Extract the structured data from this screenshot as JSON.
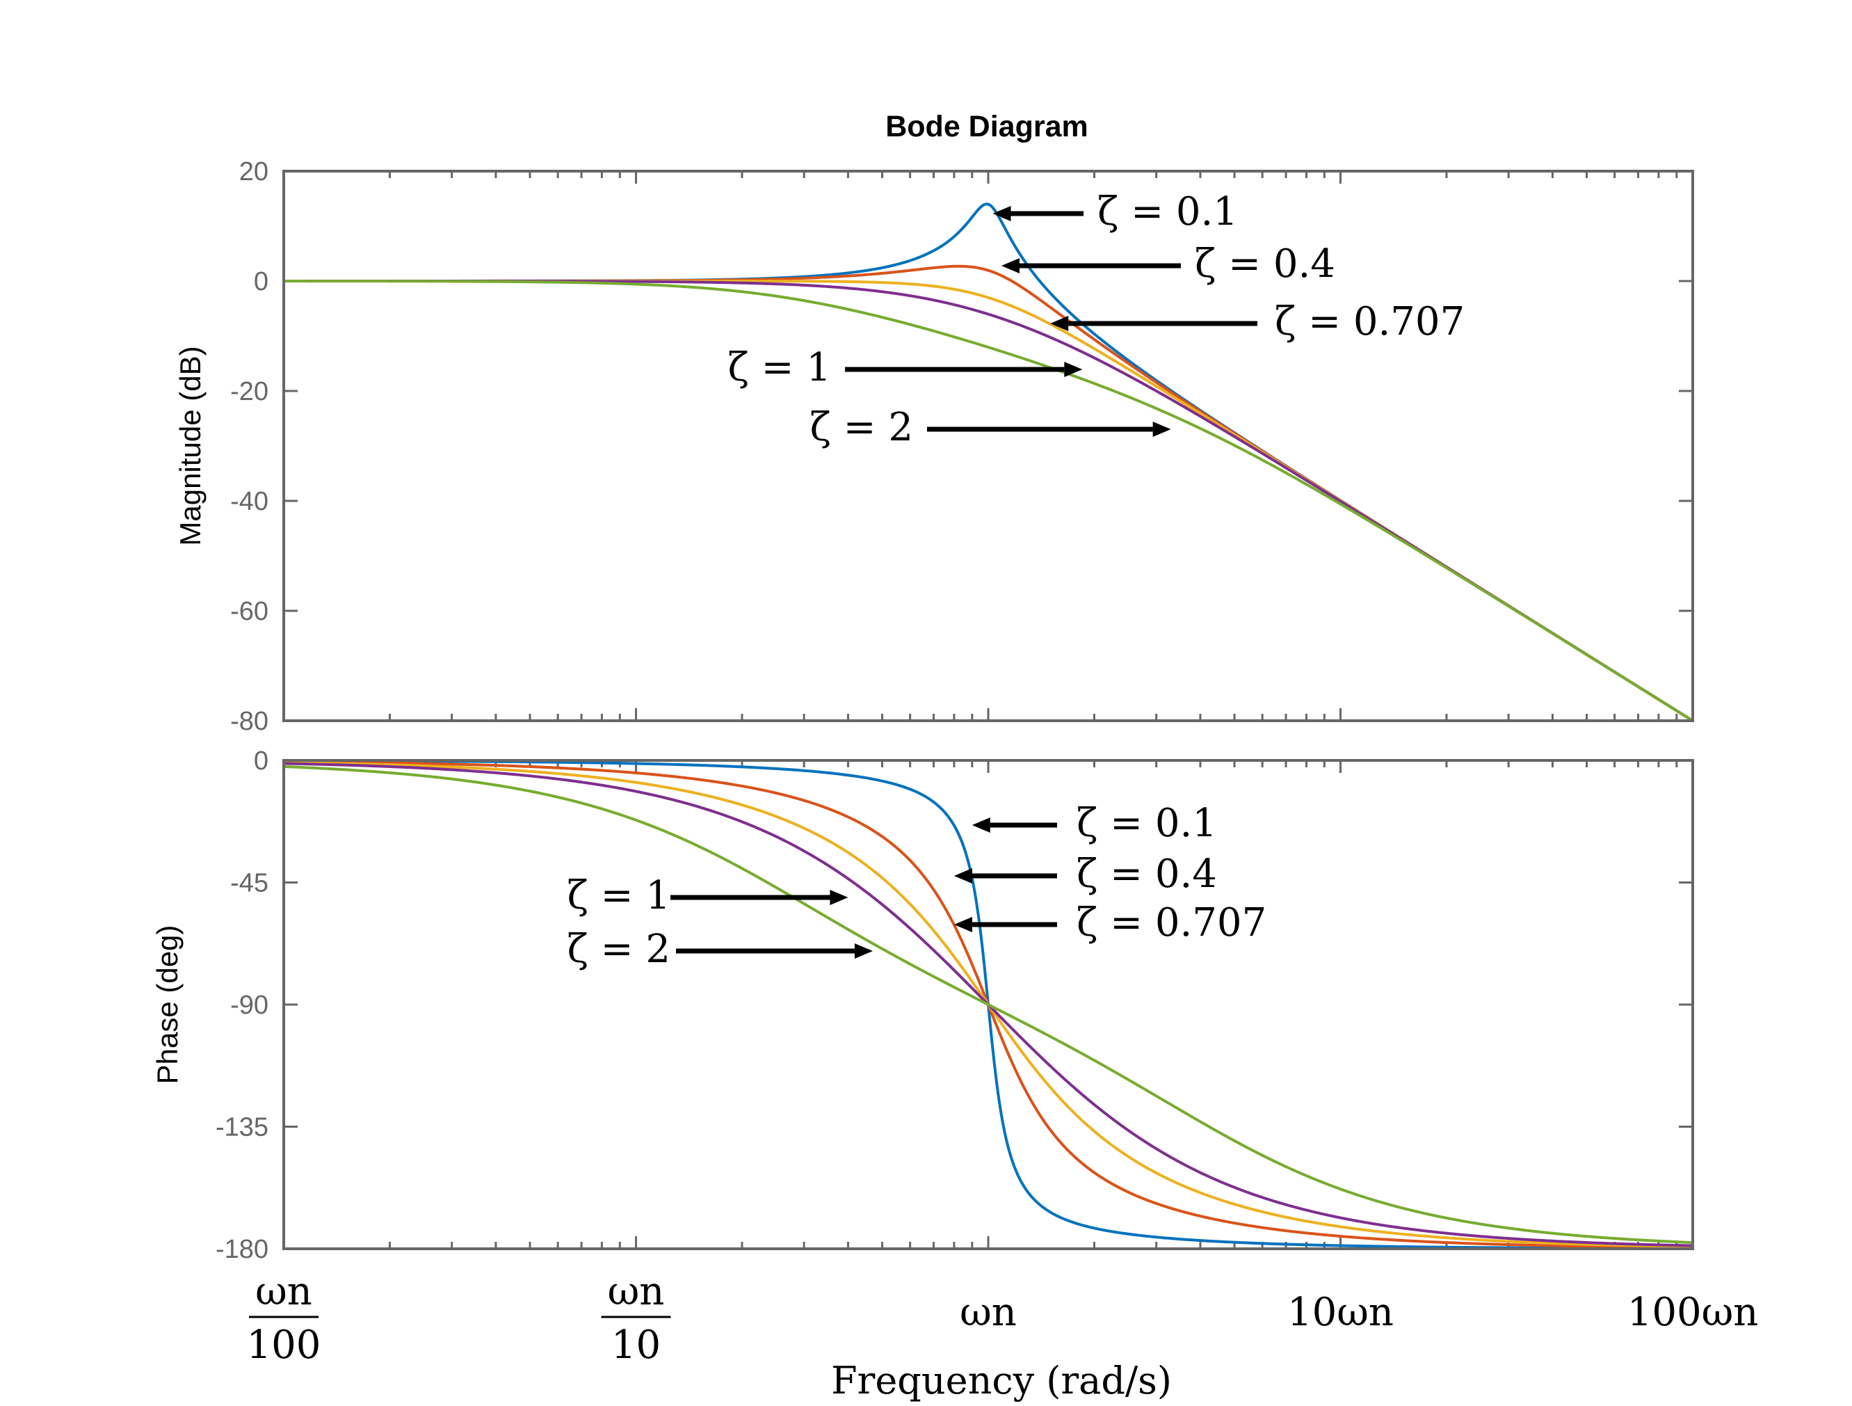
{
  "chart_data": {
    "type": "line",
    "title": "Bode Diagram",
    "xlabel": "Frequency (rad/s)",
    "x_scale": "log",
    "x_range_relative_to_wn": [
      0.01,
      100
    ],
    "x_ticks": [
      {
        "value": 0.01,
        "num": "ωn",
        "den": "100"
      },
      {
        "value": 0.1,
        "num": "ωn",
        "den": "10"
      },
      {
        "value": 1,
        "label": "ωn"
      },
      {
        "value": 10,
        "label": "10ωn"
      },
      {
        "value": 100,
        "label": "100ωn"
      }
    ],
    "series": [
      {
        "zeta": 0.1,
        "color": "#0072BD"
      },
      {
        "zeta": 0.4,
        "color": "#D95319"
      },
      {
        "zeta": 0.707,
        "color": "#EDB120"
      },
      {
        "zeta": 1,
        "color": "#7E2F8E"
      },
      {
        "zeta": 2,
        "color": "#77AC30"
      }
    ],
    "panels": [
      {
        "name": "magnitude",
        "ylabel": "Magnitude (dB)",
        "ylim": [
          -80,
          20
        ],
        "yticks": [
          "20",
          "0",
          "-20",
          "-40",
          "-60",
          "-80"
        ],
        "annotations": [
          {
            "text": "ζ = 0.1",
            "target_x": 1.03,
            "zeta": 0.1
          },
          {
            "text": "ζ = 0.4",
            "target_x": 1.09,
            "zeta": 0.4
          },
          {
            "text": "ζ = 0.707",
            "target_x": 1.5,
            "zeta": 0.707
          },
          {
            "text": "ζ = 1",
            "target_x": 1.85,
            "zeta": 1
          },
          {
            "text": "ζ = 2",
            "target_x": 3.3,
            "zeta": 2
          }
        ]
      },
      {
        "name": "phase",
        "ylabel": "Phase (deg)",
        "ylim": [
          -180,
          0
        ],
        "yticks": [
          "0",
          "-45",
          "-90",
          "-135",
          "-180"
        ],
        "annotations": [
          {
            "text": "ζ = 0.1",
            "target_x": 0.9,
            "zeta": 0.1
          },
          {
            "text": "ζ = 0.4",
            "target_x": 0.8,
            "zeta": 0.4
          },
          {
            "text": "ζ = 0.707",
            "target_x": 0.8,
            "zeta": 0.707
          },
          {
            "text": "ζ = 1",
            "target_x": 0.4,
            "zeta": 1
          },
          {
            "text": "ζ = 2",
            "target_x": 0.47,
            "zeta": 2
          }
        ]
      }
    ]
  }
}
